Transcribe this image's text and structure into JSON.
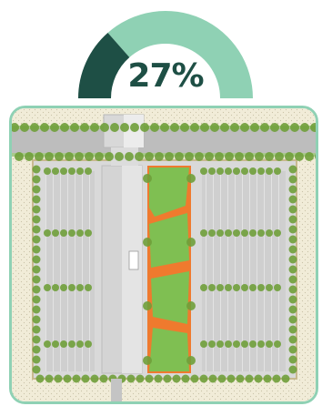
{
  "gauge": {
    "value_label": "27%",
    "fraction": 0.27,
    "filled_color": "#1e4f45",
    "remaining_color": "#8fd1b4"
  },
  "plan": {
    "frame_color": "#8fd1b4",
    "building_color": "#d4d4d4",
    "lawn_color": "#7fbf52",
    "plaza_color": "#ef7a2e",
    "parking_color": "#d0d0d0",
    "tree_color": "#6f9f3a"
  }
}
